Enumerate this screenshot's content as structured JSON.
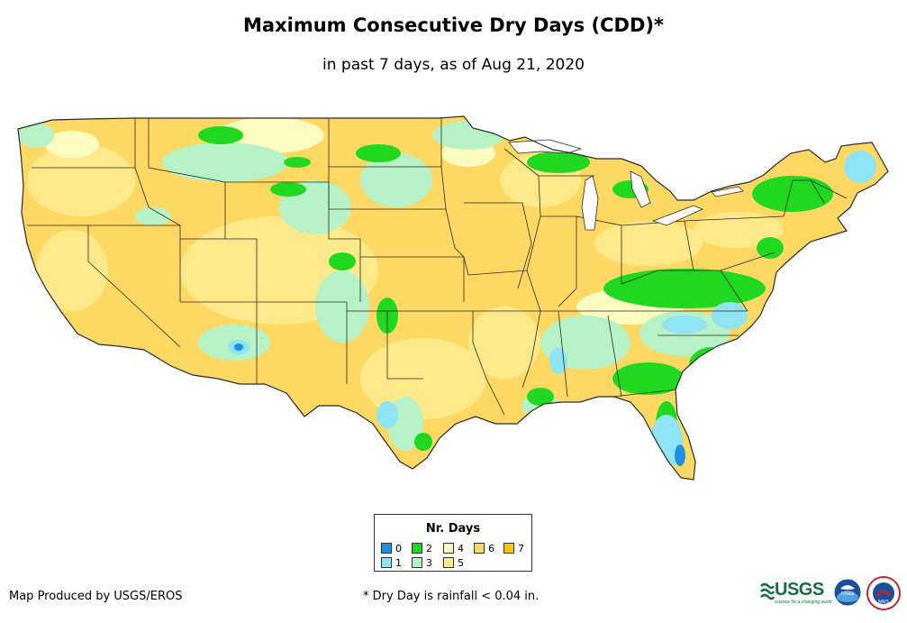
{
  "header": {
    "title": "Maximum Consecutive Dry Days (CDD)*",
    "subtitle": "in past 7 days, as of Aug 21, 2020"
  },
  "legend": {
    "title": "Nr. Days",
    "items": [
      {
        "label": "0",
        "color": "#1e90e6"
      },
      {
        "label": "1",
        "color": "#8ee4f2"
      },
      {
        "label": "2",
        "color": "#1fd81f"
      },
      {
        "label": "3",
        "color": "#b6f2c6"
      },
      {
        "label": "4",
        "color": "#fcfcc0"
      },
      {
        "label": "5",
        "color": "#fde98a"
      },
      {
        "label": "6",
        "color": "#fdd863"
      },
      {
        "label": "7",
        "color": "#fbc20b"
      }
    ]
  },
  "footer": {
    "credit": "Map Produced by USGS/EROS",
    "footnote": "* Dry Day is rainfall < 0.04 in.",
    "logos": {
      "usgs": "USGS",
      "usgs_tagline": "science for a changing world",
      "noaa": "noaa",
      "nws": "NWS"
    }
  },
  "map": {
    "region": "Contiguous United States",
    "colors": {
      "base": "#fdd863",
      "border": "#2a2a2a"
    }
  }
}
